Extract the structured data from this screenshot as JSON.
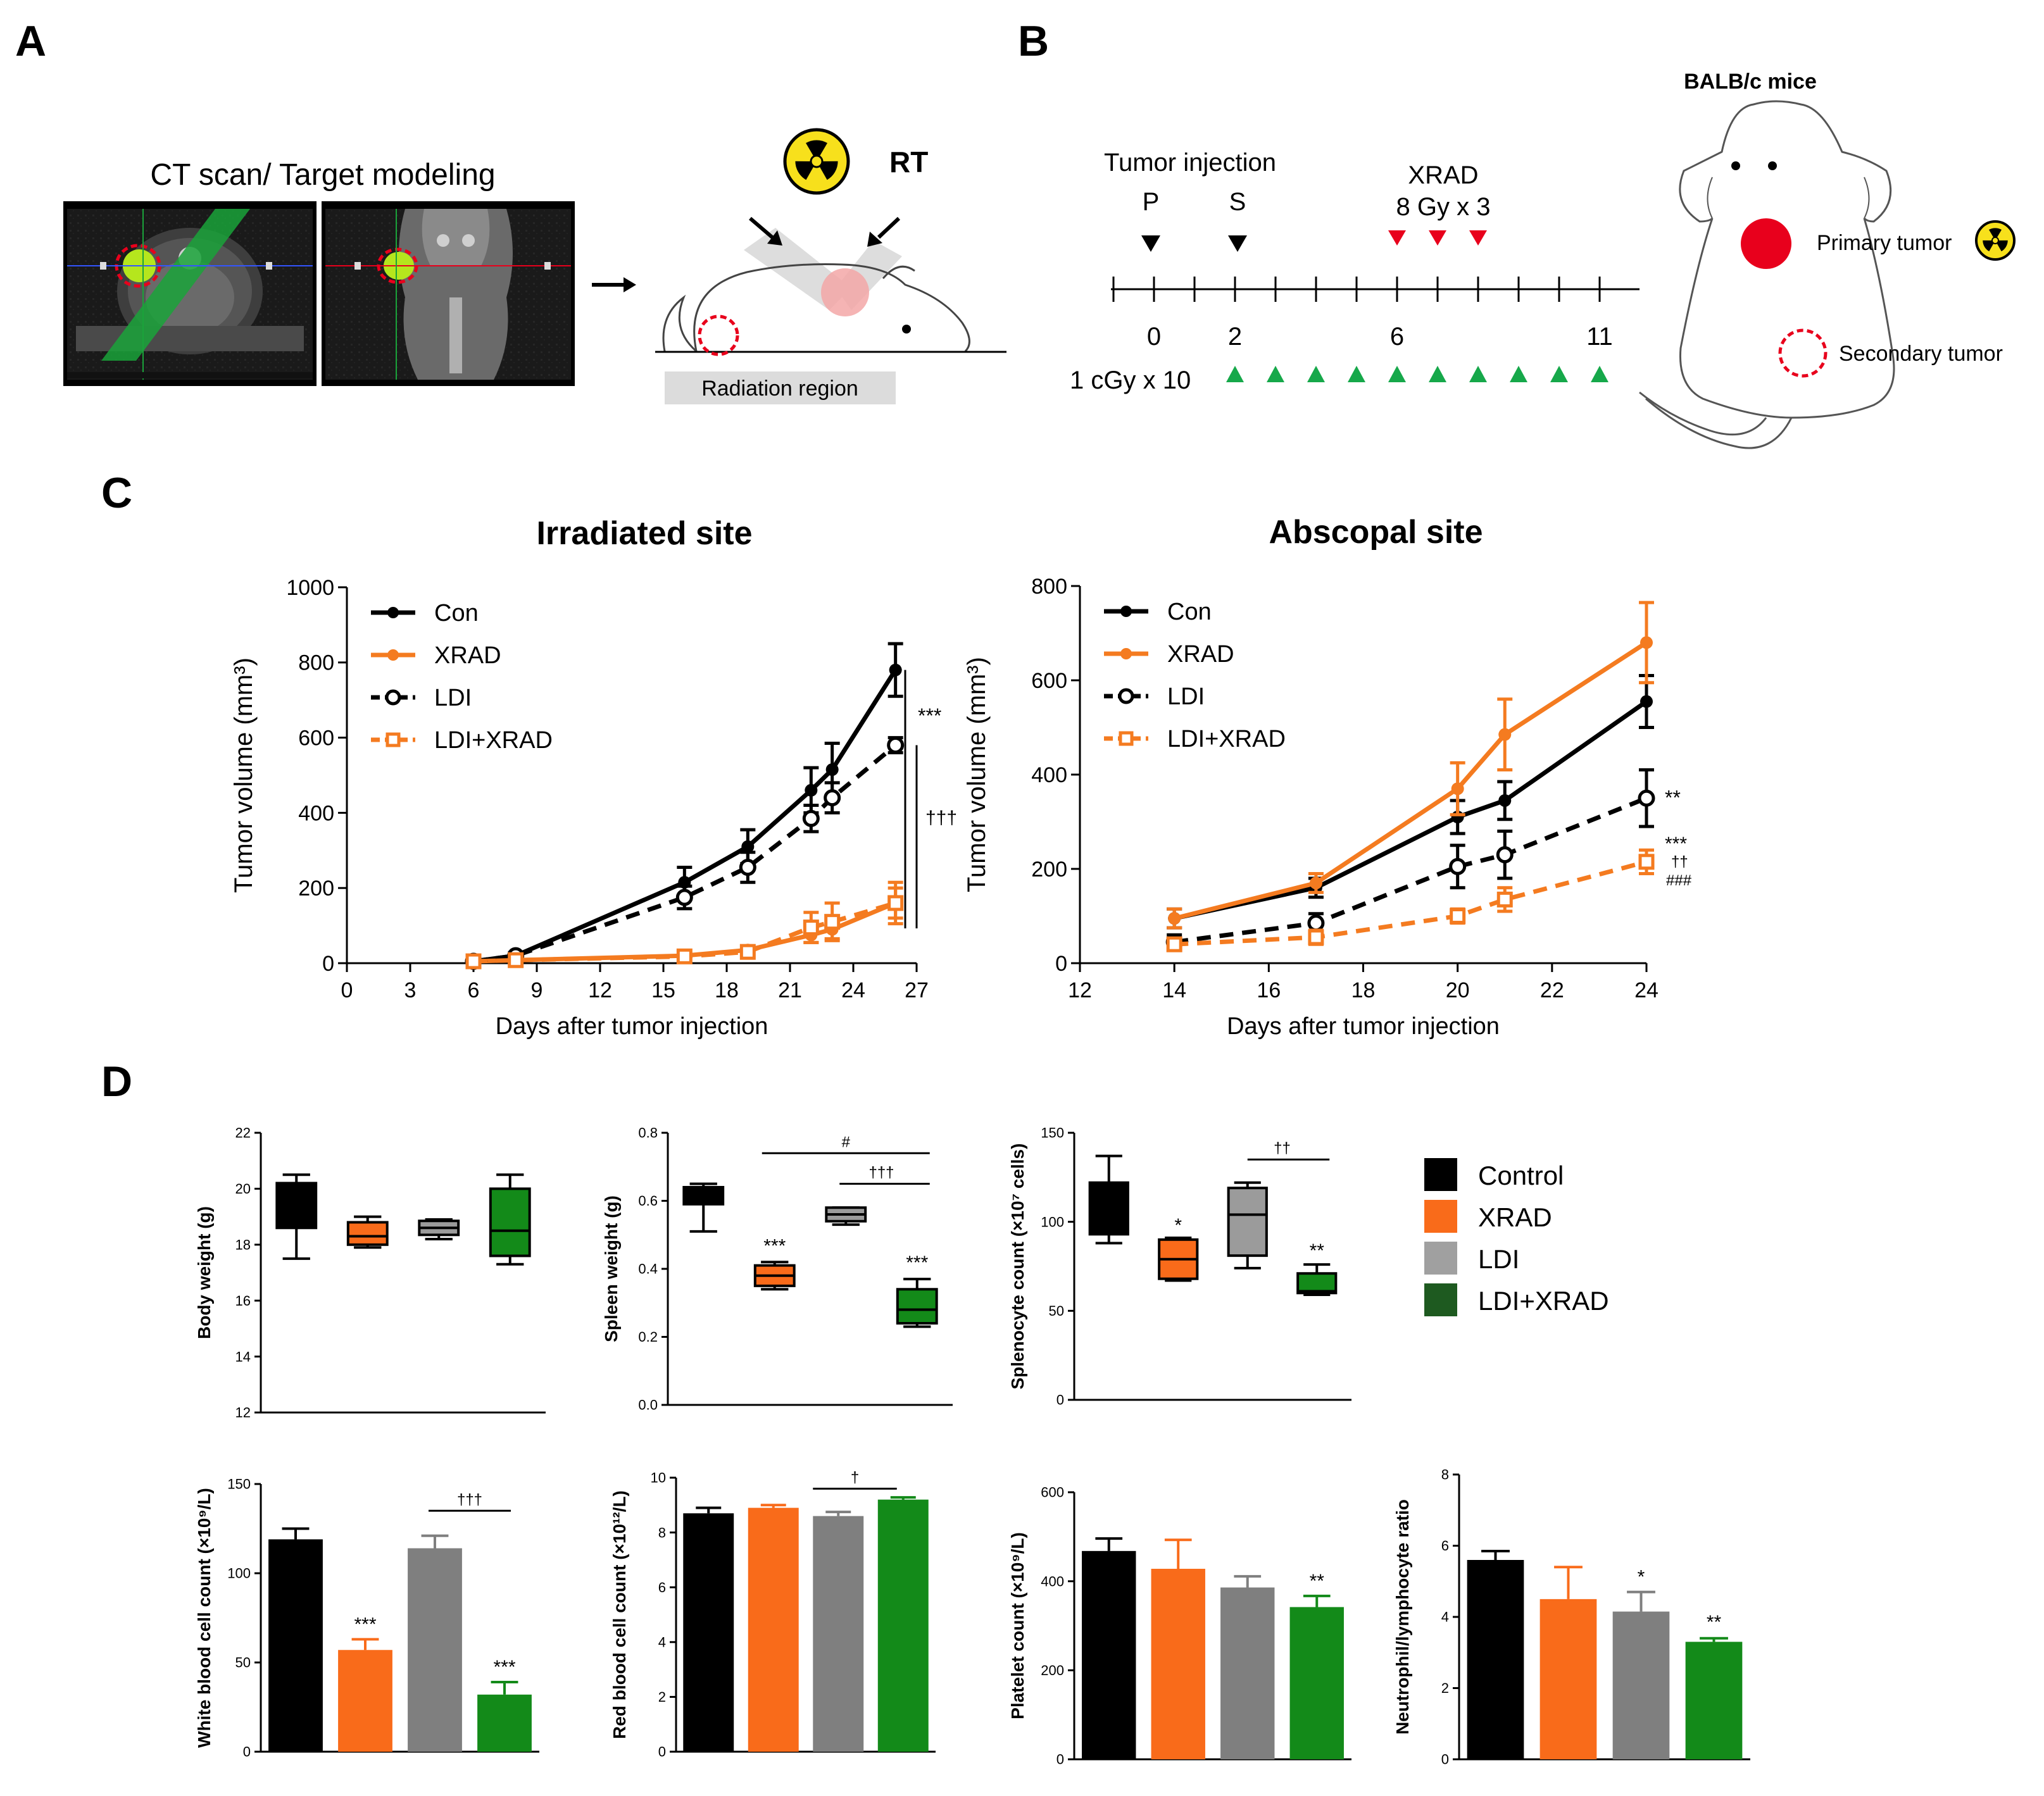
{
  "panels": {
    "a": "A",
    "b": "B",
    "c": "C",
    "d": "D"
  },
  "panel_a": {
    "ct_title": "CT scan/ Target modeling",
    "rt_label": "RT",
    "radiation_region_label": "Radiation region"
  },
  "panel_b": {
    "tumor_injection_label": "Tumor injection",
    "p_label": "P",
    "s_label": "S",
    "xrad_label": "XRAD",
    "xrad_dose": "8 Gy x 3",
    "day_labels": [
      "0",
      "2",
      "6",
      "11"
    ],
    "ldi_dose": "1 cGy x 10",
    "mice_label": "BALB/c mice",
    "primary_tumor_label": "Primary tumor",
    "secondary_tumor_label": "Secondary tumor",
    "colors": {
      "injection": "#000000",
      "xrad": "#e8001c",
      "ldi": "#16a84a",
      "tumor": "#e8001c"
    }
  },
  "chart_data": [
    {
      "type": "line",
      "title": "Irradiated site",
      "xlabel": "Days after tumor injection",
      "ylabel": "Tumor volume (mm³)",
      "xlim": [
        0,
        27
      ],
      "ylim": [
        0,
        1000
      ],
      "xticks": [
        0,
        3,
        6,
        9,
        12,
        15,
        18,
        21,
        24,
        27
      ],
      "yticks": [
        0,
        200,
        400,
        600,
        800,
        1000
      ],
      "legend_position": "top-left",
      "series": [
        {
          "name": "Con",
          "color": "#000000",
          "dashed": false,
          "open": false,
          "x": [
            6,
            8,
            16,
            19,
            22,
            23,
            26
          ],
          "y": [
            5,
            20,
            215,
            310,
            460,
            515,
            780
          ],
          "err": [
            5,
            8,
            40,
            45,
            60,
            70,
            70
          ]
        },
        {
          "name": "XRAD",
          "color": "#f47b20",
          "dashed": false,
          "open": false,
          "x": [
            6,
            8,
            16,
            19,
            22,
            23,
            26
          ],
          "y": [
            5,
            8,
            20,
            35,
            75,
            90,
            160
          ],
          "err": [
            5,
            5,
            8,
            10,
            20,
            25,
            40
          ]
        },
        {
          "name": "LDI",
          "color": "#000000",
          "dashed": true,
          "open": true,
          "x": [
            6,
            8,
            16,
            19,
            22,
            23,
            26
          ],
          "y": [
            5,
            20,
            175,
            255,
            385,
            440,
            580
          ],
          "err": [
            5,
            8,
            30,
            40,
            35,
            40,
            20
          ]
        },
        {
          "name": "LDI+XRAD",
          "color": "#f47b20",
          "dashed": true,
          "open": true,
          "x": [
            6,
            8,
            16,
            19,
            22,
            23,
            26
          ],
          "y": [
            5,
            8,
            18,
            30,
            95,
            110,
            160
          ],
          "err": [
            5,
            5,
            8,
            12,
            40,
            50,
            55
          ]
        }
      ],
      "annotations": [
        "***",
        "†††"
      ]
    },
    {
      "type": "line",
      "title": "Abscopal site",
      "xlabel": "Days after tumor injection",
      "ylabel": "Tumor volume (mm³)",
      "xlim": [
        12,
        24
      ],
      "ylim": [
        0,
        800
      ],
      "xticks": [
        12,
        14,
        16,
        18,
        20,
        22,
        24
      ],
      "yticks": [
        0,
        200,
        400,
        600,
        800
      ],
      "legend_position": "top-left",
      "series": [
        {
          "name": "Con",
          "color": "#000000",
          "dashed": false,
          "open": false,
          "x": [
            14,
            17,
            20,
            21,
            24
          ],
          "y": [
            95,
            160,
            310,
            345,
            555
          ],
          "err": [
            20,
            20,
            35,
            40,
            55
          ]
        },
        {
          "name": "XRAD",
          "color": "#f47b20",
          "dashed": false,
          "open": false,
          "x": [
            14,
            17,
            20,
            21,
            24
          ],
          "y": [
            95,
            170,
            370,
            485,
            680
          ],
          "err": [
            20,
            20,
            55,
            75,
            85
          ]
        },
        {
          "name": "LDI",
          "color": "#000000",
          "dashed": true,
          "open": true,
          "x": [
            14,
            17,
            20,
            21,
            24
          ],
          "y": [
            45,
            85,
            205,
            230,
            350
          ],
          "err": [
            15,
            20,
            45,
            50,
            60
          ]
        },
        {
          "name": "LDI+XRAD",
          "color": "#f47b20",
          "dashed": true,
          "open": true,
          "x": [
            14,
            17,
            20,
            21,
            24
          ],
          "y": [
            40,
            55,
            100,
            135,
            215
          ],
          "err": [
            10,
            15,
            15,
            25,
            25
          ]
        }
      ],
      "annotations": [
        "**",
        "***",
        "††",
        "###"
      ]
    },
    {
      "type": "box",
      "ylabel": "Body weight (g)",
      "ylim": [
        12,
        22
      ],
      "yticks": [
        12,
        14,
        16,
        18,
        20,
        22
      ],
      "categories": [
        "Control",
        "XRAD",
        "LDI",
        "LDI+XRAD"
      ],
      "boxes": [
        {
          "min": 17.5,
          "q1": 18.6,
          "median": 18.9,
          "q3": 20.2,
          "max": 20.5
        },
        {
          "min": 17.9,
          "q1": 18.0,
          "median": 18.3,
          "q3": 18.8,
          "max": 19.0
        },
        {
          "min": 18.2,
          "q1": 18.35,
          "median": 18.6,
          "q3": 18.85,
          "max": 18.9
        },
        {
          "min": 17.3,
          "q1": 17.6,
          "median": 18.5,
          "q3": 20.0,
          "max": 20.5
        }
      ],
      "annotations": []
    },
    {
      "type": "box",
      "ylabel": "Spleen weight (g)",
      "ylim": [
        0.0,
        0.8
      ],
      "yticks": [
        0.0,
        0.2,
        0.4,
        0.6,
        0.8
      ],
      "categories": [
        "Control",
        "XRAD",
        "LDI",
        "LDI+XRAD"
      ],
      "boxes": [
        {
          "min": 0.51,
          "q1": 0.59,
          "median": 0.62,
          "q3": 0.64,
          "max": 0.65
        },
        {
          "min": 0.34,
          "q1": 0.35,
          "median": 0.38,
          "q3": 0.41,
          "max": 0.42
        },
        {
          "min": 0.53,
          "q1": 0.54,
          "median": 0.56,
          "q3": 0.58,
          "max": 0.58
        },
        {
          "min": 0.23,
          "q1": 0.24,
          "median": 0.28,
          "q3": 0.34,
          "max": 0.37
        }
      ],
      "annotations": [
        "***",
        "***",
        "#",
        "†††"
      ]
    },
    {
      "type": "box",
      "ylabel": "Splenocyte count (×10⁷ cells)",
      "ylim": [
        0,
        150
      ],
      "yticks": [
        0,
        50,
        100,
        150
      ],
      "categories": [
        "Control",
        "XRAD",
        "LDI",
        "LDI+XRAD"
      ],
      "boxes": [
        {
          "min": 88,
          "q1": 93,
          "median": 104,
          "q3": 122,
          "max": 137
        },
        {
          "min": 67,
          "q1": 68,
          "median": 79,
          "q3": 90,
          "max": 91
        },
        {
          "min": 74,
          "q1": 81,
          "median": 104,
          "q3": 119,
          "max": 122
        },
        {
          "min": 59,
          "q1": 60,
          "median": 61,
          "q3": 71,
          "max": 76
        }
      ],
      "annotations": [
        "*",
        "**",
        "††"
      ]
    },
    {
      "type": "bar",
      "ylabel": "White blood cell count (×10⁹/L)",
      "ylim": [
        0,
        150
      ],
      "yticks": [
        0,
        50,
        100,
        150
      ],
      "categories": [
        "Control",
        "XRAD",
        "LDI",
        "LDI+XRAD"
      ],
      "values": [
        119,
        57,
        114,
        32
      ],
      "errors": [
        6,
        6,
        7,
        7
      ],
      "annotations": [
        "***",
        "***",
        "†††"
      ]
    },
    {
      "type": "bar",
      "ylabel": "Red blood cell count (×10¹²/L)",
      "ylim": [
        0,
        10
      ],
      "yticks": [
        0,
        2,
        4,
        6,
        8,
        10
      ],
      "categories": [
        "Control",
        "XRAD",
        "LDI",
        "LDI+XRAD"
      ],
      "values": [
        8.7,
        8.9,
        8.6,
        9.2
      ],
      "errors": [
        0.2,
        0.1,
        0.15,
        0.08
      ],
      "annotations": [
        "†"
      ]
    },
    {
      "type": "bar",
      "ylabel": "Platelet count (×10⁹/L)",
      "ylim": [
        0,
        600
      ],
      "yticks": [
        0,
        200,
        400,
        600
      ],
      "categories": [
        "Control",
        "XRAD",
        "LDI",
        "LDI+XRAD"
      ],
      "values": [
        468,
        428,
        386,
        342
      ],
      "errors": [
        28,
        65,
        25,
        25
      ],
      "annotations": [
        "**"
      ]
    },
    {
      "type": "bar",
      "ylabel": "Neutrophil/lymphocyte ratio",
      "ylim": [
        0,
        8
      ],
      "yticks": [
        0,
        2,
        4,
        6,
        8
      ],
      "categories": [
        "Control",
        "XRAD",
        "LDI",
        "LDI+XRAD"
      ],
      "values": [
        5.6,
        4.5,
        4.15,
        3.3
      ],
      "errors": [
        0.25,
        0.9,
        0.55,
        0.1
      ],
      "annotations": [
        "*",
        "**"
      ]
    }
  ],
  "legend_d": {
    "items": [
      {
        "label": "Control",
        "color": "#000000"
      },
      {
        "label": "XRAD",
        "color": "#f96b1a"
      },
      {
        "label": "LDI",
        "color": "#a0a0a0"
      },
      {
        "label": "LDI+XRAD",
        "color": "#1e5a20"
      }
    ]
  },
  "group_colors": {
    "box": [
      "#000000",
      "#f96b1a",
      "#9b9b9b",
      "#138a19"
    ],
    "bar": [
      "#000000",
      "#f96b1a",
      "#7f7f7f",
      "#138a19"
    ]
  }
}
